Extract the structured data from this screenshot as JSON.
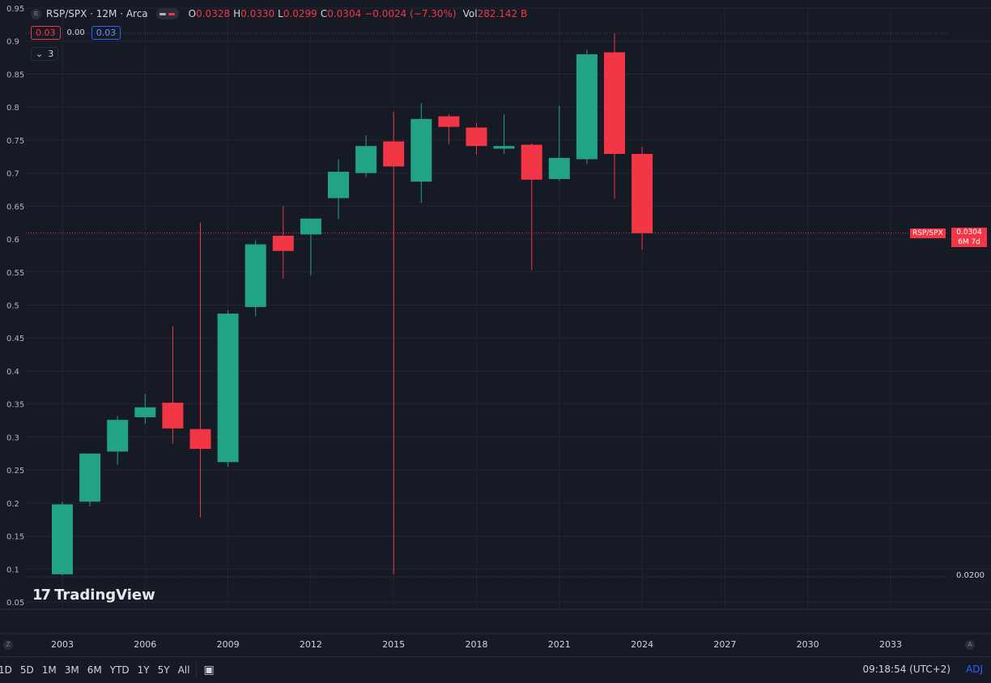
{
  "header": {
    "symbol": "RSP/SPX · 12M · Arca",
    "o_label": "O",
    "o_value": "0.0328",
    "h_label": "H",
    "h_value": "0.0330",
    "l_label": "L",
    "l_value": "0.0299",
    "c_label": "C",
    "c_value": "0.0304",
    "change": "−0.0024 (−7.30%)",
    "vol_label": "Vol",
    "vol_value": "282.142 B"
  },
  "indicators": {
    "left_value": "0.03",
    "mid_value": "0.00",
    "right_value": "0.03",
    "count": "3"
  },
  "watermark": "TradingView",
  "price_tag": {
    "symbol": "RSP/SPX",
    "price": "0.0304",
    "countdown": "6M 7d"
  },
  "bottom_right_label": "0.0200",
  "bottom_bar": {
    "timeframes": [
      "1D",
      "5D",
      "1M",
      "3M",
      "6M",
      "YTD",
      "1Y",
      "5Y",
      "All"
    ],
    "time": "09:18:54 (UTC+2)",
    "adj": "ADJ"
  },
  "colors": {
    "up": "#22a385",
    "down": "#f23645",
    "background": "#161a25",
    "grid": "#232632"
  },
  "chart_data": {
    "type": "candlestick",
    "y_ticks": [
      "0.05",
      "0.1",
      "0.15",
      "0.2",
      "0.25",
      "0.3",
      "0.35",
      "0.4",
      "0.45",
      "0.5",
      "0.55",
      "0.6",
      "0.65",
      "0.7",
      "0.75",
      "0.8",
      "0.85",
      "0.9",
      "0.95"
    ],
    "x_ticks": [
      "2003",
      "2006",
      "2009",
      "2012",
      "2015",
      "2018",
      "2021",
      "2024",
      "2027",
      "2030",
      "2033"
    ],
    "ylim": [
      0.05,
      0.95
    ],
    "xlim": [
      2002.0,
      2035.0
    ],
    "candles": [
      {
        "x": 2003,
        "o": 0.092,
        "h": 0.202,
        "l": 0.09,
        "c": 0.198
      },
      {
        "x": 2004,
        "o": 0.202,
        "h": 0.275,
        "l": 0.195,
        "c": 0.275
      },
      {
        "x": 2005,
        "o": 0.278,
        "h": 0.332,
        "l": 0.258,
        "c": 0.326
      },
      {
        "x": 2006,
        "o": 0.33,
        "h": 0.365,
        "l": 0.32,
        "c": 0.345
      },
      {
        "x": 2007,
        "o": 0.352,
        "h": 0.468,
        "l": 0.29,
        "c": 0.313
      },
      {
        "x": 2008,
        "o": 0.312,
        "h": 0.625,
        "l": 0.178,
        "c": 0.282
      },
      {
        "x": 2009,
        "o": 0.262,
        "h": 0.492,
        "l": 0.255,
        "c": 0.487
      },
      {
        "x": 2010,
        "o": 0.497,
        "h": 0.598,
        "l": 0.483,
        "c": 0.592
      },
      {
        "x": 2011,
        "o": 0.605,
        "h": 0.65,
        "l": 0.54,
        "c": 0.582
      },
      {
        "x": 2012,
        "o": 0.607,
        "h": 0.63,
        "l": 0.545,
        "c": 0.631
      },
      {
        "x": 2013,
        "o": 0.662,
        "h": 0.721,
        "l": 0.63,
        "c": 0.702
      },
      {
        "x": 2014,
        "o": 0.7,
        "h": 0.757,
        "l": 0.694,
        "c": 0.741
      },
      {
        "x": 2015,
        "o": 0.748,
        "h": 0.793,
        "l": 0.092,
        "c": 0.71
      },
      {
        "x": 2016,
        "o": 0.687,
        "h": 0.806,
        "l": 0.655,
        "c": 0.782
      },
      {
        "x": 2017,
        "o": 0.786,
        "h": 0.789,
        "l": 0.744,
        "c": 0.77
      },
      {
        "x": 2018,
        "o": 0.769,
        "h": 0.776,
        "l": 0.728,
        "c": 0.741
      },
      {
        "x": 2019,
        "o": 0.737,
        "h": 0.789,
        "l": 0.729,
        "c": 0.741
      },
      {
        "x": 2020,
        "o": 0.743,
        "h": 0.745,
        "l": 0.553,
        "c": 0.69
      },
      {
        "x": 2021,
        "o": 0.691,
        "h": 0.802,
        "l": 0.688,
        "c": 0.723
      },
      {
        "x": 2022,
        "o": 0.721,
        "h": 0.887,
        "l": 0.714,
        "c": 0.88
      },
      {
        "x": 2023,
        "o": 0.883,
        "h": 0.912,
        "l": 0.661,
        "c": 0.729
      },
      {
        "x": 2024,
        "o": 0.729,
        "h": 0.74,
        "l": 0.584,
        "c": 0.609
      }
    ],
    "price_line": 0.609,
    "high_line": 0.912,
    "low_line": 0.088
  }
}
